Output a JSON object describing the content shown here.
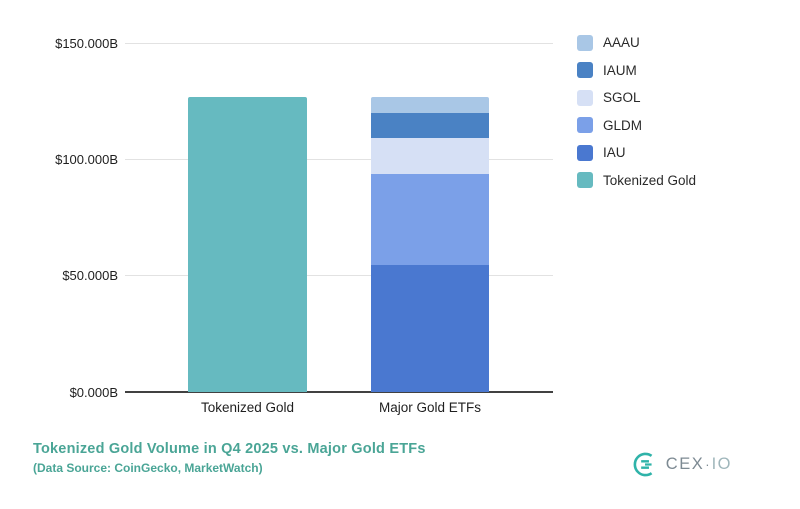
{
  "chart_data": {
    "type": "bar",
    "stacked": true,
    "title": "Tokenized Gold Volume in Q4 2025 vs. Major Gold ETFs",
    "subtitle": "(Data Source: CoinGecko, MarketWatch)",
    "unit": "USD billions",
    "categories": [
      "Tokenized Gold",
      "Major Gold ETFs"
    ],
    "ylim": [
      0,
      150
    ],
    "yticks": [
      {
        "value": 0,
        "label": "$0.000B"
      },
      {
        "value": 50,
        "label": "$50.000B"
      },
      {
        "value": 100,
        "label": "$100.000B"
      },
      {
        "value": 150,
        "label": "$150.000B"
      }
    ],
    "grid": true,
    "legend_position": "right",
    "series": [
      {
        "name": "IAU",
        "color": "#4a78d0",
        "values": [
          0,
          54.6
        ]
      },
      {
        "name": "GLDM",
        "color": "#7ba0e8",
        "values": [
          0,
          39.1
        ]
      },
      {
        "name": "SGOL",
        "color": "#d6e0f5",
        "values": [
          0,
          15.5
        ]
      },
      {
        "name": "IAUM",
        "color": "#4a82c4",
        "values": [
          0,
          10.7
        ]
      },
      {
        "name": "AAAU",
        "color": "#a9c7e6",
        "values": [
          0,
          6.9
        ]
      },
      {
        "name": "Tokenized Gold",
        "color": "#66bac0",
        "values": [
          126.8,
          0
        ]
      }
    ],
    "legend_order": [
      "AAAU",
      "IAUM",
      "SGOL",
      "GLDM",
      "IAU",
      "Tokenized Gold"
    ]
  },
  "colors": {
    "accent": "#4aa596",
    "grid": "#e2e2e2",
    "axis": "#414141",
    "text": "#1f1f1f"
  },
  "logo": {
    "brand": "CEX.IO",
    "text_primary": "CEX",
    "separator": "·",
    "text_secondary": "IO",
    "mark_icon": "cexio-ring-mark",
    "mark_color": "#2fb3a9"
  }
}
